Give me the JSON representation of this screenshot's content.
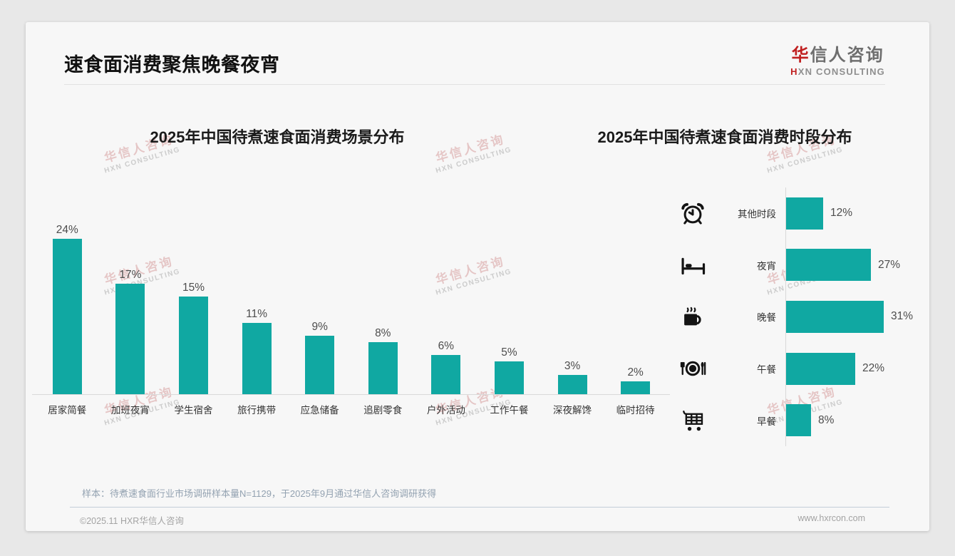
{
  "page": {
    "title": "速食面消费聚焦晚餐夜宵",
    "sample_note": "样本：待煮速食面行业市场调研样本量N=1129，于2025年9月通过华信人咨询调研获得",
    "footer_left": "©2025.11 HXR华信人咨询",
    "footer_right": "www.hxrcon.com"
  },
  "logo": {
    "zh_first": "华",
    "zh_rest": "信人咨询",
    "en_first": "H",
    "en_rest": "XN CONSULTING"
  },
  "watermark": {
    "zh": "华信人咨询",
    "en": "HXN CONSULTING"
  },
  "colors": {
    "bar_teal": "#10a8a2",
    "accent_red": "#c02020",
    "card_bg": "#f7f7f7",
    "page_bg": "#e8e8e8"
  },
  "chart_data": [
    {
      "type": "bar",
      "orientation": "vertical",
      "title": "2025年中国待煮速食面消费场景分布",
      "categories": [
        "居家简餐",
        "加班夜宵",
        "学生宿舍",
        "旅行携带",
        "应急储备",
        "追剧零食",
        "户外活动",
        "工作午餐",
        "深夜解馋",
        "临时招待"
      ],
      "values": [
        24,
        17,
        15,
        11,
        9,
        8,
        6,
        5,
        3,
        2
      ],
      "unit": "%",
      "ylim": [
        0,
        26
      ],
      "grid": false,
      "data_labels": "above bars, percent"
    },
    {
      "type": "bar",
      "orientation": "horizontal",
      "title": "2025年中国待煮速食面消费时段分布",
      "categories": [
        "其他时段",
        "夜宵",
        "晚餐",
        "午餐",
        "早餐"
      ],
      "values": [
        12,
        27,
        31,
        22,
        8
      ],
      "icons": [
        "alarm-clock",
        "bed",
        "hot-drink",
        "dinner-plate",
        "shopping-cart"
      ],
      "unit": "%",
      "xlim": [
        0,
        35
      ],
      "grid": false,
      "data_labels": "right of bars, percent"
    }
  ]
}
